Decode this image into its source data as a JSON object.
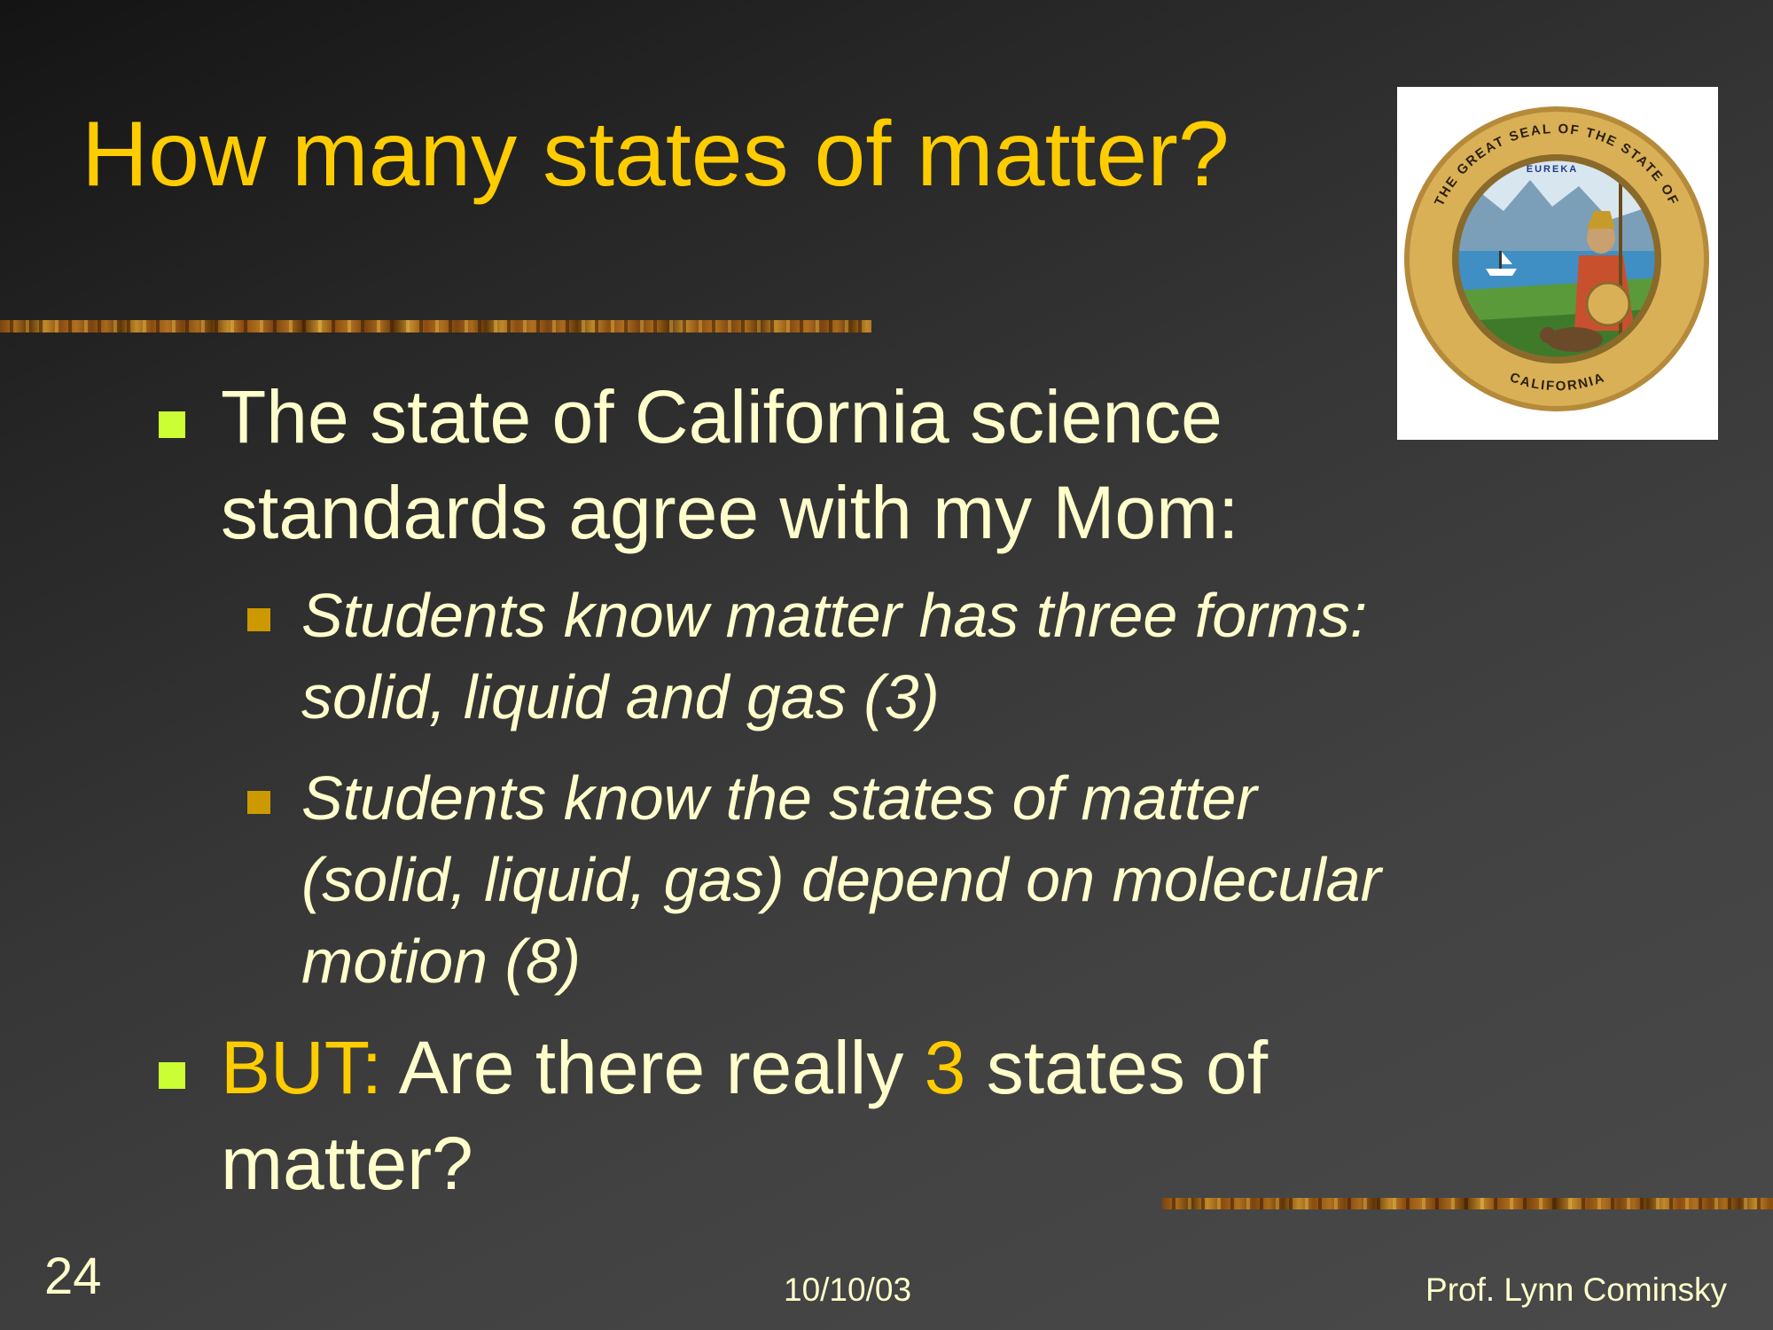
{
  "slide": {
    "title": "How many states of matter?",
    "bullets": [
      {
        "line1": "The state of California science",
        "line2": "standards agree with my Mom:",
        "sub_bullets": [
          {
            "lines": [
              "Students know matter has three forms:",
              "solid, liquid and gas (3)"
            ]
          },
          {
            "lines": [
              "Students know the states of matter",
              "(solid, liquid, gas) depend on molecular",
              "motion (8)"
            ]
          }
        ]
      },
      {
        "highlight": "BUT:",
        "text_before_number": " Are there really ",
        "number": "3",
        "text_after_number": " states of",
        "line2": "matter?"
      }
    ]
  },
  "seal": {
    "ring_top": "THE GREAT SEAL OF THE STATE OF",
    "ring_bottom": "CALIFORNIA",
    "motto": "EUREKA"
  },
  "footer": {
    "slide_number": "24",
    "date": "10/10/03",
    "author": "Prof. Lynn Cominsky"
  },
  "colors": {
    "title": "#ffcc00",
    "body_text": "#ffffcc",
    "bullet_l1": "#ccff33",
    "bullet_l2": "#cc9900"
  }
}
